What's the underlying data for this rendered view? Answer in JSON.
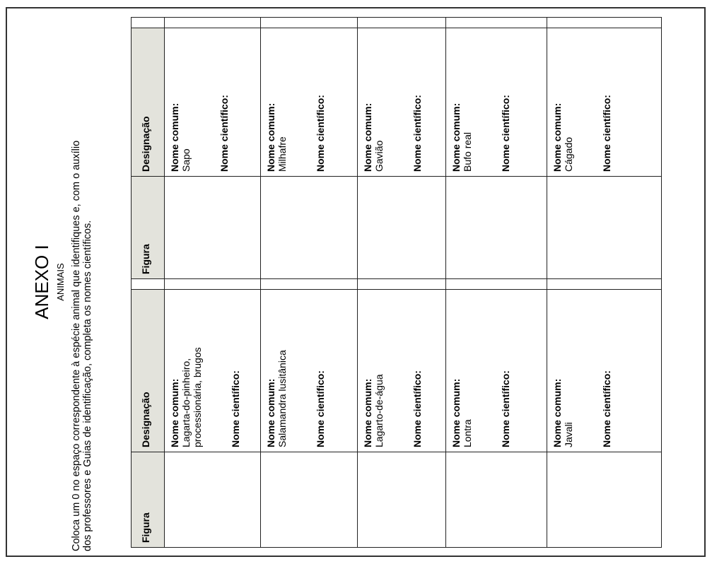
{
  "header": {
    "title": "ANEXO I",
    "subtitle": "ANIMAIS",
    "instruction": [
      "Coloca um 0 no espaço correspondente à espécie animal que identifiques e, com o auxílio",
      "dos professores e Guias de identificação, completa os nomes científicos."
    ]
  },
  "table": {
    "headers": [
      "Figura",
      "Designação",
      "Figura",
      "Designação"
    ],
    "rows": [
      [
        {
          "common_label": "Nome comum:",
          "common_name": "Lagarta-do-pinheiro, processionária, brugos",
          "scientific_label": "Nome científico:"
        },
        {
          "common_label": "Nome comum:",
          "common_name": "Sapo",
          "scientific_label": "Nome científico:"
        }
      ],
      [
        {
          "common_label": "Nome comum:",
          "common_name": "Salamandra lusitânica",
          "scientific_label": "Nome científico:"
        },
        {
          "common_label": "Nome comum:",
          "common_name": "Milhafre",
          "scientific_label": "Nome científico:"
        }
      ],
      [
        {
          "common_label": "Nome comum:",
          "common_name": "Lagarto-de-água",
          "scientific_label": "Nome científico:"
        },
        {
          "common_label": "Nome comum:",
          "common_name": "Gavião",
          "scientific_label": "Nome científico:"
        }
      ],
      [
        {
          "common_label": "Nome comum:",
          "common_name": "Lontra",
          "scientific_label": "Nome científico:"
        },
        {
          "common_label": "Nome comum:",
          "common_name": "Bufo real",
          "scientific_label": "Nome científico:"
        }
      ],
      [
        {
          "common_label": "Nome comum:",
          "common_name": "Javali",
          "scientific_label": "Nome científico:"
        },
        {
          "common_label": "Nome comum:",
          "common_name": "Cágado",
          "scientific_label": "Nome científico:"
        }
      ]
    ]
  }
}
